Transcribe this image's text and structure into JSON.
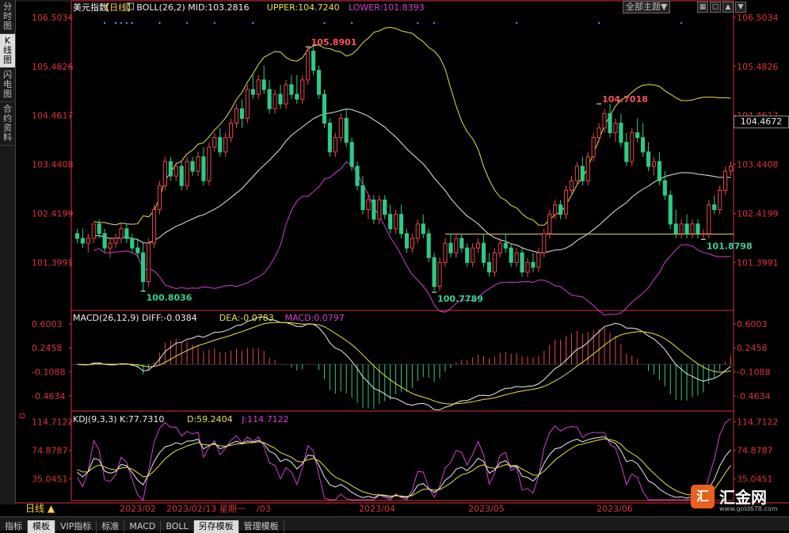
{
  "left_tabs": [
    "分时图",
    "K线图",
    "闪电图",
    "合约资料"
  ],
  "left_tab_active": 1,
  "toolbar": {
    "theme_label": "全部主题▼",
    "icons": [
      "grid-icon",
      "window-icon",
      "up-icon",
      "down-icon"
    ]
  },
  "title": "美元指数",
  "period": "【日线】",
  "boll": {
    "label": "BOLL(26,2)",
    "mid": "MID:103.2816",
    "upper": "UPPER:104.7240",
    "lower": "LOWER:101.8393"
  },
  "macd_header": {
    "label": "MACD(26,12,9)",
    "diff": "DIFF:-0.0384",
    "dea": "DEA:-0.0783",
    "macd": "MACD:0.0797"
  },
  "kdj_header": {
    "label": "KDJ(9,3,3)",
    "k": "K:77.7310",
    "d": "D:59.2404",
    "j": "J:114.7122"
  },
  "price_ticks": [
    "106.5034",
    "105.4826",
    "104.4617",
    "103.4408",
    "102.4199",
    "101.3991"
  ],
  "macd_ticks": [
    "0.6003",
    "0.2458",
    "-0.1088",
    "-0.4634"
  ],
  "kdj_ticks": [
    "114.7122",
    "74.8787",
    "35.0451"
  ],
  "current_price": "104.4672",
  "x_labels": [
    "2023/02",
    "2023/04",
    "2023/05",
    "2023/06"
  ],
  "cursor_date": "2023/02/13 星期一",
  "cursor_suffix": "/03",
  "period_footer": "日线 ▲",
  "bottom_tabs": [
    "指标",
    "模板",
    "VIP指标",
    "标准",
    "MACD",
    "BOLL",
    "另存模板",
    "管理模板"
  ],
  "bottom_tab_active": [
    1,
    6
  ],
  "logo": {
    "mark": "汇",
    "name": "汇金网",
    "url": "www.gold678.com"
  },
  "colors": {
    "up": "#e8474c",
    "down": "#2fc987",
    "mid": "#e8e8e8",
    "upper": "#e6e24a",
    "lower": "#d040d0",
    "axis": "#d9333f"
  },
  "chart_data": {
    "type": "candlestick",
    "title": "美元指数 日线",
    "price_ylim": [
      100.4,
      106.6
    ],
    "annotations": [
      {
        "label": "105.8901",
        "type": "high"
      },
      {
        "label": "100.8036",
        "type": "low"
      },
      {
        "label": "100.7789",
        "type": "low"
      },
      {
        "label": "104.7018",
        "type": "high"
      },
      {
        "label": "101.8798",
        "type": "low"
      }
    ],
    "horizontal_line": 101.99,
    "ohlc": [
      [
        102.0,
        102.1,
        101.8,
        101.9
      ],
      [
        101.9,
        102.1,
        101.7,
        101.8
      ],
      [
        101.8,
        102.0,
        101.6,
        101.9
      ],
      [
        101.9,
        102.2,
        101.8,
        102.2
      ],
      [
        102.2,
        102.3,
        101.9,
        102.0
      ],
      [
        102.0,
        102.1,
        101.6,
        101.7
      ],
      [
        101.7,
        101.9,
        101.5,
        101.8
      ],
      [
        101.8,
        102.0,
        101.7,
        101.9
      ],
      [
        101.9,
        102.2,
        101.8,
        102.1
      ],
      [
        102.1,
        102.2,
        101.8,
        101.9
      ],
      [
        101.9,
        102.0,
        101.6,
        101.7
      ],
      [
        101.7,
        101.9,
        101.5,
        101.6
      ],
      [
        101.6,
        101.8,
        100.8,
        101.0
      ],
      [
        101.0,
        101.9,
        100.9,
        101.8
      ],
      [
        101.8,
        102.6,
        101.7,
        102.5
      ],
      [
        102.5,
        103.1,
        102.4,
        103.0
      ],
      [
        103.0,
        103.6,
        102.9,
        103.5
      ],
      [
        103.5,
        103.6,
        103.1,
        103.2
      ],
      [
        103.2,
        103.5,
        103.1,
        103.4
      ],
      [
        103.4,
        103.5,
        102.9,
        103.0
      ],
      [
        103.0,
        103.6,
        102.9,
        103.5
      ],
      [
        103.5,
        103.6,
        103.2,
        103.3
      ],
      [
        103.3,
        103.7,
        103.2,
        103.6
      ],
      [
        103.6,
        103.8,
        103.0,
        103.1
      ],
      [
        103.1,
        103.9,
        103.0,
        103.8
      ],
      [
        103.8,
        104.1,
        103.7,
        104.0
      ],
      [
        104.0,
        104.2,
        103.6,
        103.7
      ],
      [
        103.7,
        104.1,
        103.6,
        104.0
      ],
      [
        104.0,
        104.4,
        103.9,
        104.3
      ],
      [
        104.3,
        104.7,
        104.2,
        104.6
      ],
      [
        104.6,
        104.8,
        104.2,
        104.4
      ],
      [
        104.4,
        105.1,
        104.3,
        105.0
      ],
      [
        105.0,
        105.3,
        104.8,
        104.9
      ],
      [
        104.9,
        105.3,
        104.8,
        105.2
      ],
      [
        105.2,
        105.5,
        104.9,
        105.0
      ],
      [
        105.0,
        105.2,
        104.5,
        104.6
      ],
      [
        104.6,
        105.0,
        104.5,
        104.9
      ],
      [
        104.9,
        105.1,
        104.6,
        104.7
      ],
      [
        104.7,
        105.2,
        104.6,
        105.1
      ],
      [
        105.1,
        105.3,
        104.8,
        104.9
      ],
      [
        104.9,
        105.3,
        104.7,
        104.8
      ],
      [
        104.8,
        105.3,
        104.7,
        105.2
      ],
      [
        105.2,
        105.9,
        105.1,
        105.8
      ],
      [
        105.8,
        105.9,
        105.3,
        105.4
      ],
      [
        105.4,
        105.5,
        104.8,
        104.9
      ],
      [
        104.9,
        105.0,
        104.2,
        104.3
      ],
      [
        104.3,
        104.4,
        103.6,
        103.7
      ],
      [
        103.7,
        104.1,
        103.6,
        104.0
      ],
      [
        104.0,
        104.5,
        103.9,
        104.4
      ],
      [
        104.4,
        104.6,
        103.8,
        103.9
      ],
      [
        103.9,
        104.0,
        103.3,
        103.4
      ],
      [
        103.4,
        103.5,
        102.9,
        103.0
      ],
      [
        103.0,
        103.2,
        102.4,
        102.5
      ],
      [
        102.5,
        102.8,
        102.3,
        102.7
      ],
      [
        102.7,
        102.8,
        102.2,
        102.3
      ],
      [
        102.3,
        102.8,
        102.2,
        102.7
      ],
      [
        102.7,
        102.8,
        102.3,
        102.4
      ],
      [
        102.4,
        102.6,
        102.0,
        102.1
      ],
      [
        102.1,
        102.5,
        102.0,
        102.4
      ],
      [
        102.4,
        102.6,
        101.9,
        102.0
      ],
      [
        102.0,
        102.1,
        101.6,
        101.7
      ],
      [
        101.7,
        102.0,
        101.6,
        101.9
      ],
      [
        101.9,
        102.3,
        101.8,
        102.2
      ],
      [
        102.2,
        102.4,
        101.9,
        102.0
      ],
      [
        102.0,
        102.1,
        101.4,
        101.5
      ],
      [
        101.5,
        101.6,
        100.8,
        100.9
      ],
      [
        100.9,
        101.5,
        100.8,
        101.4
      ],
      [
        101.4,
        101.9,
        101.3,
        101.8
      ],
      [
        101.8,
        102.0,
        101.5,
        101.6
      ],
      [
        101.6,
        102.0,
        101.5,
        101.9
      ],
      [
        101.9,
        102.0,
        101.6,
        101.7
      ],
      [
        101.7,
        101.8,
        101.3,
        101.4
      ],
      [
        101.4,
        101.8,
        101.3,
        101.7
      ],
      [
        101.7,
        101.9,
        101.6,
        101.8
      ],
      [
        101.8,
        102.0,
        101.3,
        101.4
      ],
      [
        101.4,
        101.6,
        101.1,
        101.2
      ],
      [
        101.2,
        101.7,
        101.1,
        101.6
      ],
      [
        101.6,
        101.9,
        101.5,
        101.8
      ],
      [
        101.8,
        102.0,
        101.6,
        101.7
      ],
      [
        101.7,
        101.8,
        101.3,
        101.4
      ],
      [
        101.4,
        101.7,
        101.3,
        101.6
      ],
      [
        101.6,
        101.7,
        101.1,
        101.2
      ],
      [
        101.2,
        101.5,
        101.1,
        101.4
      ],
      [
        101.4,
        101.6,
        101.2,
        101.3
      ],
      [
        101.3,
        101.7,
        101.2,
        101.6
      ],
      [
        101.6,
        102.1,
        101.5,
        102.0
      ],
      [
        102.0,
        102.5,
        101.9,
        102.4
      ],
      [
        102.4,
        102.7,
        102.3,
        102.6
      ],
      [
        102.6,
        102.7,
        102.3,
        102.4
      ],
      [
        102.4,
        103.0,
        102.3,
        102.9
      ],
      [
        102.9,
        103.2,
        102.8,
        103.1
      ],
      [
        103.1,
        103.5,
        103.0,
        103.4
      ],
      [
        103.4,
        103.6,
        103.0,
        103.1
      ],
      [
        103.1,
        103.7,
        103.0,
        103.6
      ],
      [
        103.6,
        104.1,
        103.5,
        104.0
      ],
      [
        104.0,
        104.3,
        103.9,
        104.2
      ],
      [
        104.2,
        104.6,
        104.1,
        104.5
      ],
      [
        104.5,
        104.7,
        104.0,
        104.1
      ],
      [
        104.1,
        104.4,
        103.9,
        104.3
      ],
      [
        104.3,
        104.5,
        103.8,
        103.9
      ],
      [
        103.9,
        104.1,
        103.4,
        103.5
      ],
      [
        103.5,
        104.2,
        103.4,
        104.1
      ],
      [
        104.1,
        104.4,
        103.9,
        104.0
      ],
      [
        104.0,
        104.3,
        103.6,
        103.7
      ],
      [
        103.7,
        103.9,
        103.3,
        103.4
      ],
      [
        103.4,
        103.6,
        103.2,
        103.5
      ],
      [
        103.5,
        103.7,
        103.0,
        103.1
      ],
      [
        103.1,
        103.3,
        102.7,
        102.8
      ],
      [
        102.8,
        102.9,
        102.1,
        102.2
      ],
      [
        102.2,
        102.5,
        101.9,
        102.0
      ],
      [
        102.0,
        102.3,
        101.9,
        102.2
      ],
      [
        102.2,
        102.4,
        101.9,
        102.0
      ],
      [
        102.0,
        102.3,
        101.9,
        102.2
      ],
      [
        102.2,
        102.3,
        101.9,
        102.0
      ],
      [
        102.0,
        102.1,
        101.9,
        102.0
      ],
      [
        102.0,
        102.7,
        101.9,
        102.6
      ],
      [
        102.6,
        102.8,
        102.4,
        102.5
      ],
      [
        102.5,
        103.0,
        102.4,
        102.9
      ],
      [
        102.9,
        103.4,
        102.8,
        103.3
      ],
      [
        103.3,
        103.5,
        103.2,
        103.4
      ]
    ],
    "macd_ylim": [
      -0.7,
      0.75
    ],
    "kdj_ylim": [
      5,
      125
    ]
  }
}
